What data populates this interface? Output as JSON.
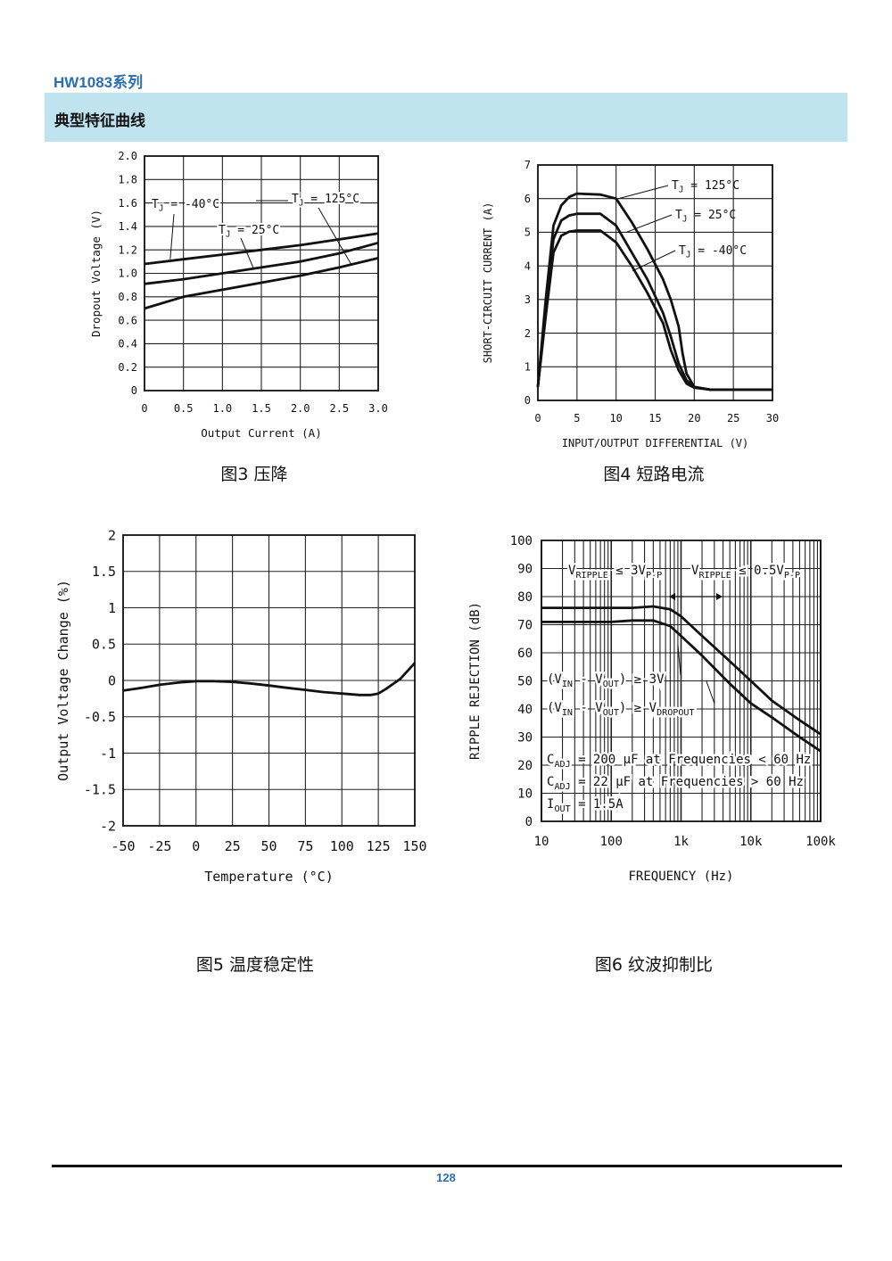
{
  "header": {
    "series_title": "HW1083系列",
    "section_title": "典型特征曲线"
  },
  "captions": {
    "fig3": "图3  压降",
    "fig4": "图4  短路电流",
    "fig5": "图5  温度稳定性",
    "fig6": "图6  纹波抑制比"
  },
  "footer": {
    "page_number": "128"
  },
  "colors": {
    "accent": "#2a6fb0",
    "section_bg": "#bfe4ef",
    "curve": "#111111",
    "grid": "#222222"
  },
  "chart_data": [
    {
      "id": "fig3",
      "type": "line",
      "title": "",
      "xlabel": "Output Current (A)",
      "ylabel": "Dropout Voltage (V)",
      "xlim": [
        0,
        3.0
      ],
      "ylim": [
        0,
        2.0
      ],
      "xticks": [
        "0",
        "0.5",
        "1.0",
        "1.5",
        "2.0",
        "2.5",
        "3.0"
      ],
      "yticks": [
        "0",
        "0.2",
        "0.4",
        "0.6",
        "0.8",
        "1.0",
        "1.2",
        "1.4",
        "1.6",
        "1.8",
        "2.0"
      ],
      "grid": true,
      "series": [
        {
          "name": "TJ = -40°C",
          "x": [
            0,
            0.5,
            1.0,
            1.5,
            2.0,
            2.5,
            3.0
          ],
          "y": [
            1.08,
            1.12,
            1.16,
            1.2,
            1.24,
            1.29,
            1.34
          ]
        },
        {
          "name": "TJ = 25°C",
          "x": [
            0,
            0.5,
            1.0,
            1.5,
            2.0,
            2.5,
            3.0
          ],
          "y": [
            0.91,
            0.95,
            1.0,
            1.05,
            1.1,
            1.17,
            1.26
          ]
        },
        {
          "name": "TJ = 125°C",
          "x": [
            0,
            0.5,
            1.0,
            1.5,
            2.0,
            2.5,
            3.0
          ],
          "y": [
            0.7,
            0.8,
            0.86,
            0.92,
            0.98,
            1.05,
            1.13
          ]
        }
      ],
      "annotations": [
        {
          "label": "TJ = -40°C",
          "target_series": 0
        },
        {
          "label": "TJ = 25°C",
          "target_series": 1
        },
        {
          "label": "TJ = 125°C",
          "target_series": 2
        }
      ]
    },
    {
      "id": "fig4",
      "type": "line",
      "title": "",
      "xlabel": "INPUT/OUTPUT DIFFERENTIAL (V)",
      "ylabel": "SHORT-CIRCUIT CURRENT (A)",
      "xlim": [
        0,
        30
      ],
      "ylim": [
        0,
        7
      ],
      "xticks": [
        "0",
        "5",
        "10",
        "15",
        "20",
        "25",
        "30"
      ],
      "yticks": [
        "0",
        "1",
        "2",
        "3",
        "4",
        "5",
        "6",
        "7"
      ],
      "grid": true,
      "series": [
        {
          "name": "TJ = 125°C",
          "x": [
            0,
            1,
            2,
            3,
            4,
            5,
            8,
            10,
            12,
            14,
            16,
            17,
            18,
            18.5,
            19,
            20,
            22,
            30
          ],
          "y": [
            0.4,
            3.0,
            5.2,
            5.8,
            6.05,
            6.15,
            6.12,
            6.0,
            5.3,
            4.5,
            3.6,
            3.0,
            2.2,
            1.4,
            0.8,
            0.4,
            0.32,
            0.32
          ]
        },
        {
          "name": "TJ = 25°C",
          "x": [
            0,
            1,
            2,
            3,
            4,
            5,
            8,
            10,
            12,
            14,
            16,
            17,
            18,
            19,
            20,
            22,
            30
          ],
          "y": [
            0.4,
            2.8,
            4.8,
            5.35,
            5.5,
            5.55,
            5.55,
            5.2,
            4.4,
            3.6,
            2.6,
            1.9,
            1.1,
            0.6,
            0.4,
            0.32,
            0.32
          ]
        },
        {
          "name": "TJ = -40°C",
          "x": [
            0,
            1,
            2,
            3,
            4,
            5,
            8,
            10,
            12,
            14,
            16,
            17,
            18,
            19,
            20,
            22,
            30
          ],
          "y": [
            0.4,
            2.5,
            4.4,
            4.9,
            5.02,
            5.05,
            5.05,
            4.7,
            4.0,
            3.2,
            2.3,
            1.5,
            0.9,
            0.5,
            0.38,
            0.32,
            0.32
          ]
        }
      ],
      "annotations": [
        {
          "label": "TJ = 125°C",
          "target_series": 0
        },
        {
          "label": "TJ = 25°C",
          "target_series": 1
        },
        {
          "label": "TJ = -40°C",
          "target_series": 2
        }
      ]
    },
    {
      "id": "fig5",
      "type": "line",
      "title": "",
      "xlabel": "Temperature (°C)",
      "ylabel": "Output Voltage Change (%)",
      "xlim": [
        -50,
        150
      ],
      "ylim": [
        -2,
        2
      ],
      "xticks": [
        "-50",
        "-25",
        "0",
        "25",
        "50",
        "75",
        "100",
        "125",
        "150"
      ],
      "yticks": [
        "-2",
        "-1.5",
        "-1",
        "-0.5",
        "0",
        "0.5",
        "1",
        "1.5",
        "2"
      ],
      "grid": true,
      "series": [
        {
          "name": "",
          "x": [
            -50,
            -37,
            -25,
            -12,
            0,
            12,
            25,
            37,
            50,
            62,
            75,
            87,
            100,
            112,
            120,
            125,
            130,
            140,
            150
          ],
          "y": [
            -0.14,
            -0.1,
            -0.06,
            -0.03,
            -0.01,
            -0.01,
            -0.02,
            -0.04,
            -0.07,
            -0.1,
            -0.13,
            -0.16,
            -0.18,
            -0.2,
            -0.2,
            -0.18,
            -0.12,
            0.02,
            0.24
          ]
        }
      ]
    },
    {
      "id": "fig6",
      "type": "line",
      "title": "",
      "xlabel": "FREQUENCY (Hz)",
      "ylabel": "RIPPLE REJECTION (dB)",
      "xscale": "log",
      "xlim": [
        10,
        100000
      ],
      "ylim": [
        0,
        100
      ],
      "xticks": [
        "10",
        "100",
        "1k",
        "10k",
        "100k"
      ],
      "yticks": [
        "0",
        "10",
        "20",
        "30",
        "40",
        "50",
        "60",
        "70",
        "80",
        "90",
        "100"
      ],
      "grid": true,
      "series": [
        {
          "name": "(VIN - VOUT) ≥ 3V",
          "x": [
            10,
            100,
            200,
            400,
            700,
            1000,
            2000,
            5000,
            10000,
            20000,
            50000,
            100000
          ],
          "y": [
            76,
            76,
            76,
            76.5,
            75.5,
            73,
            66,
            57,
            50,
            43,
            36,
            31
          ]
        },
        {
          "name": "(VIN - VOUT) ≥ VDROPOUT",
          "x": [
            10,
            100,
            200,
            400,
            700,
            1000,
            2000,
            5000,
            10000,
            20000,
            50000,
            100000
          ],
          "y": [
            71,
            71,
            71.5,
            71.5,
            69.5,
            66,
            59,
            49,
            42,
            37,
            30,
            25
          ]
        }
      ],
      "annotations": [
        {
          "line1": "V",
          "sub1": "RIPPLE",
          "op1": " ≤ 3V",
          "sub1b": "P-P"
        },
        {
          "line2": "V",
          "sub2": "RIPPLE",
          "op2": " ≤ 0.5V",
          "sub2b": "P-P"
        },
        {
          "label_parts": [
            "(V",
            "IN",
            " - V",
            "OUT",
            ") ≥ 3V"
          ]
        },
        {
          "label_parts": [
            "(V",
            "IN",
            " - V",
            "OUT",
            ") ≥ V",
            "DROPOUT"
          ]
        },
        {
          "cadj1": [
            "C",
            "ADJ",
            " = 200 μF at Frequencies < 60 Hz"
          ]
        },
        {
          "cadj2": [
            "C",
            "ADJ",
            " = 22 μF at Frequencies > 60 Hz"
          ]
        },
        {
          "iout": [
            "I",
            "OUT",
            " = 1.5A"
          ]
        }
      ]
    }
  ]
}
